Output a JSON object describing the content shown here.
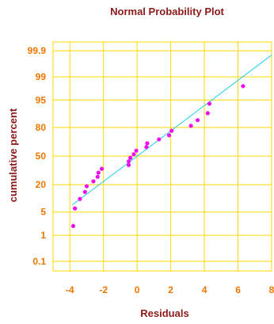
{
  "chart_data": {
    "type": "scatter",
    "title": "Normal Probability Plot",
    "xlabel": "Residuals",
    "ylabel": "cumulative percent",
    "xlim": [
      -5,
      8
    ],
    "x_ticks": [
      -4,
      -2,
      0,
      2,
      4,
      6,
      8
    ],
    "x_tick_labels": [
      "-4",
      "-2",
      "0",
      "2",
      "4",
      "6",
      "8"
    ],
    "y_scale": "normal-probability",
    "y_ticks": [
      0.1,
      1,
      5,
      20,
      50,
      80,
      95,
      99,
      99.9
    ],
    "y_tick_labels": [
      "0.1",
      "1",
      "5",
      "20",
      "50",
      "80",
      "95",
      "99",
      "99.9"
    ],
    "grid": true,
    "colors": {
      "points": "#ee11ee",
      "fit_line": "#22ccee",
      "grid": "#ffd700",
      "tick_labels": "#ee7700",
      "labels": "#8b1a1a"
    },
    "series": [
      {
        "type": "scatter",
        "x": [
          -3.8,
          -3.7,
          -3.4,
          -3.1,
          -3.0,
          -2.6,
          -2.35,
          -2.3,
          -2.1,
          -0.5,
          -0.5,
          -0.4,
          -0.2,
          -0.05,
          0.55,
          0.6,
          1.3,
          1.9,
          2.05,
          3.2,
          3.6,
          4.2,
          4.3,
          6.3
        ],
        "y": [
          2.0,
          6.2,
          10.4,
          14.6,
          18.8,
          22.9,
          27.1,
          31.3,
          35.4,
          39.6,
          43.8,
          47.9,
          52.1,
          56.3,
          60.4,
          64.6,
          68.8,
          72.9,
          77.1,
          81.3,
          85.4,
          89.6,
          93.8,
          98.0
        ]
      },
      {
        "type": "line",
        "x": [
          -3.85,
          8
        ],
        "y": [
          7.6,
          99.85
        ]
      }
    ]
  }
}
